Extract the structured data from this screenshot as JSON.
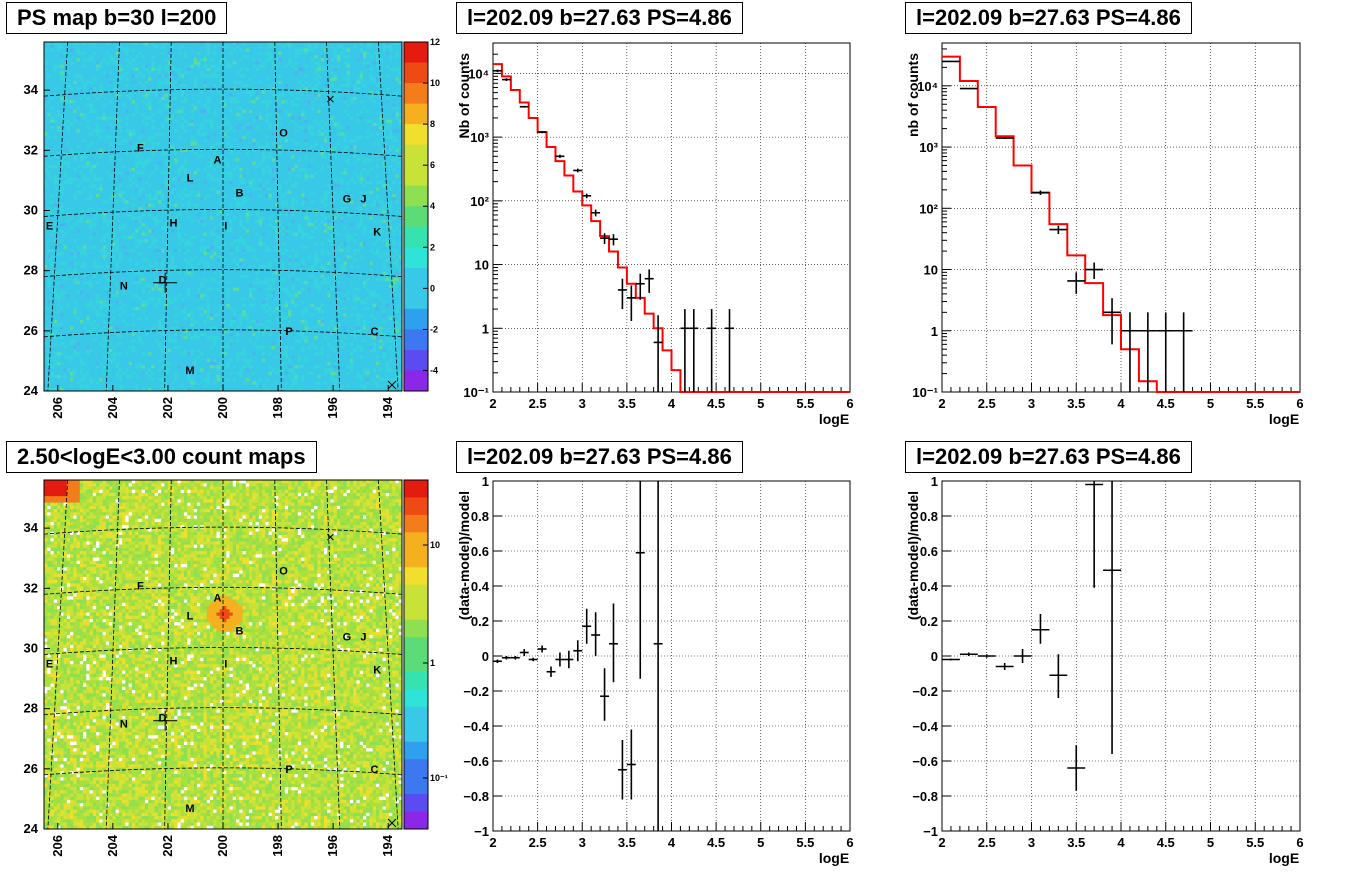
{
  "titles": {
    "map_top": "PS map b=30 l=200",
    "map_bottom": "2.50<logE<3.00 count maps",
    "spec_top_mid": "l=202.09 b=27.63 PS=4.86",
    "spec_top_right": "l=202.09 b=27.63 PS=4.86",
    "res_bottom_mid": "l=202.09 b=27.63 PS=4.86",
    "res_bottom_right": "l=202.09 b=27.63 PS=4.86"
  },
  "colors": {
    "model_line": "#ff0000",
    "data_marker": "#000000",
    "grid": "#000000"
  },
  "chart_data": [
    {
      "type": "heatmap",
      "panel": "map_top",
      "title": "PS map b=30 l=200",
      "x_ticks": [
        "206",
        "204",
        "202",
        "200",
        "198",
        "196",
        "194"
      ],
      "y_ticks": [
        "24",
        "26",
        "28",
        "30",
        "32",
        "34"
      ],
      "xlim": [
        206.5,
        193.5
      ],
      "ylim": [
        24,
        35.6
      ],
      "colorbar_ticks": [
        "-4",
        "-2",
        "0",
        "2",
        "4",
        "6",
        "8",
        "10",
        "12"
      ],
      "colorbar_range": [
        -5,
        12
      ],
      "sources": [
        {
          "label": "O",
          "l": 197.8,
          "b": 32.6
        },
        {
          "label": "F",
          "l": 203.0,
          "b": 32.1
        },
        {
          "label": "A",
          "l": 200.2,
          "b": 31.7
        },
        {
          "label": "L",
          "l": 201.2,
          "b": 31.1
        },
        {
          "label": "B",
          "l": 199.4,
          "b": 30.6
        },
        {
          "label": "G",
          "l": 195.5,
          "b": 30.4
        },
        {
          "label": "J",
          "l": 194.9,
          "b": 30.4
        },
        {
          "label": "E",
          "l": 206.3,
          "b": 29.5
        },
        {
          "label": "H",
          "l": 201.8,
          "b": 29.6
        },
        {
          "label": "I",
          "l": 199.9,
          "b": 29.5
        },
        {
          "label": "K",
          "l": 194.4,
          "b": 29.3
        },
        {
          "label": "N",
          "l": 203.6,
          "b": 27.5
        },
        {
          "label": "D",
          "l": 202.2,
          "b": 27.7
        },
        {
          "label": "P",
          "l": 197.6,
          "b": 26.0
        },
        {
          "label": "C",
          "l": 194.5,
          "b": 26.0
        },
        {
          "label": "M",
          "l": 201.2,
          "b": 24.7
        }
      ]
    },
    {
      "type": "heatmap",
      "panel": "map_bottom",
      "title": "2.50<logE<3.00 count maps",
      "x_ticks": [
        "206",
        "204",
        "202",
        "200",
        "198",
        "196",
        "194"
      ],
      "y_ticks": [
        "24",
        "26",
        "28",
        "30",
        "32",
        "34"
      ],
      "xlim": [
        206.5,
        193.5
      ],
      "ylim": [
        24,
        35.6
      ],
      "colorbar_ticks": [
        "10",
        "1",
        "10⁻¹"
      ],
      "colorbar_scale": "log",
      "sources": [
        {
          "label": "O",
          "l": 197.8,
          "b": 32.6
        },
        {
          "label": "F",
          "l": 203.0,
          "b": 32.1
        },
        {
          "label": "A",
          "l": 200.2,
          "b": 31.7
        },
        {
          "label": "L",
          "l": 201.2,
          "b": 31.1
        },
        {
          "label": "B",
          "l": 199.4,
          "b": 30.6
        },
        {
          "label": "G",
          "l": 195.5,
          "b": 30.4
        },
        {
          "label": "J",
          "l": 194.9,
          "b": 30.4
        },
        {
          "label": "E",
          "l": 206.3,
          "b": 29.5
        },
        {
          "label": "H",
          "l": 201.8,
          "b": 29.6
        },
        {
          "label": "I",
          "l": 199.9,
          "b": 29.5
        },
        {
          "label": "K",
          "l": 194.4,
          "b": 29.3
        },
        {
          "label": "N",
          "l": 203.6,
          "b": 27.5
        },
        {
          "label": "D",
          "l": 202.2,
          "b": 27.7
        },
        {
          "label": "P",
          "l": 197.6,
          "b": 26.0
        },
        {
          "label": "C",
          "l": 194.5,
          "b": 26.0
        },
        {
          "label": "M",
          "l": 201.2,
          "b": 24.7
        }
      ]
    },
    {
      "type": "line",
      "panel": "spec_top_mid",
      "title": "l=202.09 b=27.63 PS=4.86",
      "xlabel": "logE",
      "ylabel": "Nb of counts",
      "xlim": [
        2,
        6
      ],
      "ylim": [
        0.1,
        30000
      ],
      "yscale": "log",
      "grid": true,
      "x_ticks": [
        "2",
        "2.5",
        "3",
        "3.5",
        "4",
        "4.5",
        "5",
        "5.5",
        "6"
      ],
      "y_ticks": [
        "10⁻¹",
        "1",
        "10",
        "10²",
        "10³",
        "10⁴"
      ],
      "model_step": {
        "edges": [
          2.0,
          2.1,
          2.2,
          2.3,
          2.4,
          2.5,
          2.6,
          2.7,
          2.8,
          2.9,
          3.0,
          3.1,
          3.2,
          3.3,
          3.4,
          3.5,
          3.6,
          3.7,
          3.8,
          3.9,
          4.0,
          4.1,
          4.2,
          6.0
        ],
        "values": [
          14000,
          9000,
          5500,
          3500,
          2000,
          1200,
          700,
          420,
          250,
          140,
          85,
          48,
          28,
          16,
          9,
          5,
          3,
          1.7,
          1.0,
          0.45,
          0.22,
          0.1,
          0.1
        ]
      },
      "data": [
        {
          "x": 2.05,
          "y": 11000,
          "xe": 0.05,
          "ylo": 10500,
          "yhi": 11500
        },
        {
          "x": 2.15,
          "y": 8000,
          "xe": 0.05,
          "ylo": 7600,
          "yhi": 8400
        },
        {
          "x": 2.35,
          "y": 3000,
          "xe": 0.05,
          "ylo": 2900,
          "yhi": 3100
        },
        {
          "x": 2.55,
          "y": 1200,
          "xe": 0.05,
          "ylo": 1150,
          "yhi": 1250
        },
        {
          "x": 2.75,
          "y": 500,
          "xe": 0.05,
          "ylo": 470,
          "yhi": 530
        },
        {
          "x": 2.95,
          "y": 300,
          "xe": 0.05,
          "ylo": 280,
          "yhi": 320
        },
        {
          "x": 3.05,
          "y": 120,
          "xe": 0.05,
          "ylo": 110,
          "yhi": 130
        },
        {
          "x": 3.15,
          "y": 65,
          "xe": 0.05,
          "ylo": 57,
          "yhi": 73
        },
        {
          "x": 3.25,
          "y": 26,
          "xe": 0.05,
          "ylo": 21,
          "yhi": 31
        },
        {
          "x": 3.35,
          "y": 25,
          "xe": 0.05,
          "ylo": 20,
          "yhi": 30
        },
        {
          "x": 3.45,
          "y": 4,
          "xe": 0.05,
          "ylo": 2,
          "yhi": 6
        },
        {
          "x": 3.55,
          "y": 3,
          "xe": 0.05,
          "ylo": 1.3,
          "yhi": 4.7
        },
        {
          "x": 3.65,
          "y": 5,
          "xe": 0.05,
          "ylo": 2.8,
          "yhi": 7.2
        },
        {
          "x": 3.75,
          "y": 6,
          "xe": 0.05,
          "ylo": 3.6,
          "yhi": 8.4
        },
        {
          "x": 3.85,
          "y": 0.6,
          "xe": 0.05,
          "ylo": 0.1,
          "yhi": 1.6
        },
        {
          "x": 4.15,
          "y": 1,
          "xe": 0.05,
          "ylo": 0.1,
          "yhi": 2
        },
        {
          "x": 4.25,
          "y": 1,
          "xe": 0.05,
          "ylo": 0.1,
          "yhi": 2
        },
        {
          "x": 4.45,
          "y": 1,
          "xe": 0.05,
          "ylo": 0.1,
          "yhi": 2
        },
        {
          "x": 4.65,
          "y": 1,
          "xe": 0.05,
          "ylo": 0.1,
          "yhi": 2
        }
      ]
    },
    {
      "type": "line",
      "panel": "spec_top_right",
      "title": "l=202.09 b=27.63 PS=4.86",
      "xlabel": "logE",
      "ylabel": "nb of counts",
      "xlim": [
        2,
        6
      ],
      "ylim": [
        0.1,
        50000
      ],
      "yscale": "log",
      "grid": true,
      "x_ticks": [
        "2",
        "2.5",
        "3",
        "3.5",
        "4",
        "4.5",
        "5",
        "5.5",
        "6"
      ],
      "y_ticks": [
        "10⁻¹",
        "1",
        "10",
        "10²",
        "10³",
        "10⁴"
      ],
      "model_step": {
        "edges": [
          2.0,
          2.2,
          2.4,
          2.6,
          2.8,
          3.0,
          3.2,
          3.4,
          3.6,
          3.8,
          4.0,
          4.2,
          4.4,
          6.0
        ],
        "values": [
          30000,
          12000,
          4500,
          1500,
          500,
          180,
          55,
          17,
          6,
          1.8,
          0.5,
          0.15,
          0.1
        ]
      },
      "data": [
        {
          "x": 2.1,
          "y": 25000,
          "xe": 0.1,
          "ylo": 24500,
          "yhi": 25500
        },
        {
          "x": 2.3,
          "y": 9000,
          "xe": 0.1,
          "ylo": 8800,
          "yhi": 9200
        },
        {
          "x": 2.7,
          "y": 1400,
          "xe": 0.1,
          "ylo": 1350,
          "yhi": 1450
        },
        {
          "x": 3.1,
          "y": 180,
          "xe": 0.1,
          "ylo": 165,
          "yhi": 195
        },
        {
          "x": 3.3,
          "y": 45,
          "xe": 0.1,
          "ylo": 38,
          "yhi": 52
        },
        {
          "x": 3.5,
          "y": 6.5,
          "xe": 0.1,
          "ylo": 4,
          "yhi": 9
        },
        {
          "x": 3.7,
          "y": 10,
          "xe": 0.1,
          "ylo": 7,
          "yhi": 13
        },
        {
          "x": 3.9,
          "y": 2,
          "xe": 0.1,
          "ylo": 0.6,
          "yhi": 3.4
        },
        {
          "x": 4.1,
          "y": 1,
          "xe": 0.1,
          "ylo": 0.1,
          "yhi": 2
        },
        {
          "x": 4.3,
          "y": 1,
          "xe": 0.1,
          "ylo": 0.1,
          "yhi": 2
        },
        {
          "x": 4.5,
          "y": 1,
          "xe": 0.1,
          "ylo": 0.1,
          "yhi": 2
        },
        {
          "x": 4.7,
          "y": 1,
          "xe": 0.1,
          "ylo": 0.1,
          "yhi": 2
        }
      ]
    },
    {
      "type": "scatter",
      "panel": "res_bottom_mid",
      "title": "l=202.09 b=27.63 PS=4.86",
      "xlabel": "logE",
      "ylabel": "(data-model)/model",
      "xlim": [
        2,
        6
      ],
      "ylim": [
        -1,
        1
      ],
      "grid": true,
      "x_ticks": [
        "2",
        "2.5",
        "3",
        "3.5",
        "4",
        "4.5",
        "5",
        "5.5",
        "6"
      ],
      "y_ticks": [
        "−1",
        "−0.8",
        "−0.6",
        "−0.4",
        "−0.2",
        "0",
        "0.2",
        "0.4",
        "0.6",
        "0.8",
        "1"
      ],
      "data": [
        {
          "x": 2.05,
          "y": -0.03,
          "xe": 0.05,
          "ylo": -0.04,
          "yhi": -0.02
        },
        {
          "x": 2.15,
          "y": -0.01,
          "xe": 0.05,
          "ylo": -0.02,
          "yhi": 0.0
        },
        {
          "x": 2.25,
          "y": -0.01,
          "xe": 0.05,
          "ylo": -0.02,
          "yhi": 0.0
        },
        {
          "x": 2.35,
          "y": 0.02,
          "xe": 0.05,
          "ylo": 0.0,
          "yhi": 0.04
        },
        {
          "x": 2.45,
          "y": -0.02,
          "xe": 0.05,
          "ylo": -0.03,
          "yhi": -0.01
        },
        {
          "x": 2.55,
          "y": 0.04,
          "xe": 0.05,
          "ylo": 0.02,
          "yhi": 0.06
        },
        {
          "x": 2.65,
          "y": -0.09,
          "xe": 0.05,
          "ylo": -0.12,
          "yhi": -0.06
        },
        {
          "x": 2.75,
          "y": -0.02,
          "xe": 0.05,
          "ylo": -0.06,
          "yhi": 0.02
        },
        {
          "x": 2.85,
          "y": -0.02,
          "xe": 0.05,
          "ylo": -0.07,
          "yhi": 0.03
        },
        {
          "x": 2.95,
          "y": 0.03,
          "xe": 0.05,
          "ylo": -0.03,
          "yhi": 0.09
        },
        {
          "x": 3.05,
          "y": 0.17,
          "xe": 0.05,
          "ylo": 0.07,
          "yhi": 0.27
        },
        {
          "x": 3.15,
          "y": 0.12,
          "xe": 0.05,
          "ylo": 0.0,
          "yhi": 0.25
        },
        {
          "x": 3.25,
          "y": -0.23,
          "xe": 0.05,
          "ylo": -0.37,
          "yhi": -0.07
        },
        {
          "x": 3.35,
          "y": 0.07,
          "xe": 0.05,
          "ylo": -0.15,
          "yhi": 0.3
        },
        {
          "x": 3.45,
          "y": -0.65,
          "xe": 0.05,
          "ylo": -0.82,
          "yhi": -0.48
        },
        {
          "x": 3.55,
          "y": -0.62,
          "xe": 0.05,
          "ylo": -0.82,
          "yhi": -0.42
        },
        {
          "x": 3.65,
          "y": 0.59,
          "xe": 0.05,
          "ylo": -0.13,
          "yhi": 1.0
        },
        {
          "x": 3.85,
          "y": 0.07,
          "xe": 0.05,
          "ylo": -1.0,
          "yhi": 1.0
        }
      ]
    },
    {
      "type": "scatter",
      "panel": "res_bottom_right",
      "title": "l=202.09 b=27.63 PS=4.86",
      "xlabel": "logE",
      "ylabel": "(data-model)/model",
      "xlim": [
        2,
        6
      ],
      "ylim": [
        -1,
        1
      ],
      "grid": true,
      "x_ticks": [
        "2",
        "2.5",
        "3",
        "3.5",
        "4",
        "4.5",
        "5",
        "5.5",
        "6"
      ],
      "y_ticks": [
        "−1",
        "−0.8",
        "−0.6",
        "−0.4",
        "−0.2",
        "0",
        "0.2",
        "0.4",
        "0.6",
        "0.8",
        "1"
      ],
      "data": [
        {
          "x": 2.1,
          "y": -0.02,
          "xe": 0.1,
          "ylo": -0.025,
          "yhi": -0.015
        },
        {
          "x": 2.3,
          "y": 0.01,
          "xe": 0.1,
          "ylo": 0.0,
          "yhi": 0.02
        },
        {
          "x": 2.5,
          "y": 0.0,
          "xe": 0.1,
          "ylo": -0.01,
          "yhi": 0.01
        },
        {
          "x": 2.7,
          "y": -0.06,
          "xe": 0.1,
          "ylo": -0.08,
          "yhi": -0.04
        },
        {
          "x": 2.9,
          "y": 0.0,
          "xe": 0.1,
          "ylo": -0.04,
          "yhi": 0.04
        },
        {
          "x": 3.1,
          "y": 0.15,
          "xe": 0.1,
          "ylo": 0.07,
          "yhi": 0.24
        },
        {
          "x": 3.3,
          "y": -0.11,
          "xe": 0.1,
          "ylo": -0.24,
          "yhi": 0.01
        },
        {
          "x": 3.5,
          "y": -0.64,
          "xe": 0.1,
          "ylo": -0.77,
          "yhi": -0.51
        },
        {
          "x": 3.7,
          "y": 0.98,
          "xe": 0.1,
          "ylo": 0.39,
          "yhi": 1.0
        },
        {
          "x": 3.9,
          "y": 0.49,
          "xe": 0.1,
          "ylo": -0.56,
          "yhi": 1.0
        }
      ]
    }
  ]
}
